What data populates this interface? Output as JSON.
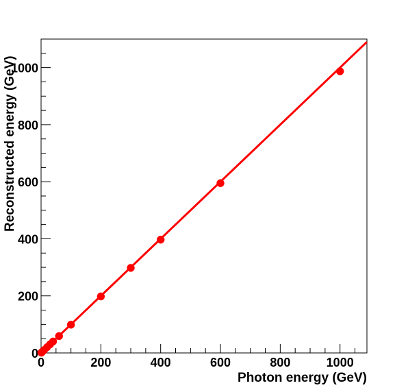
{
  "chart_data": {
    "type": "scatter",
    "title": "",
    "xlabel": "Photon energy (GeV)",
    "ylabel": "Reconstructed energy (GeV)",
    "xlim": [
      0,
      1090
    ],
    "ylim": [
      0,
      1100
    ],
    "x_ticks": [
      0,
      200,
      400,
      600,
      800,
      1000
    ],
    "y_ticks": [
      0,
      200,
      400,
      600,
      800,
      1000
    ],
    "grid": false,
    "series": [
      {
        "color": "#ff0000",
        "marker": "circle",
        "points": [
          {
            "x": 1,
            "y": 1
          },
          {
            "x": 2,
            "y": 2
          },
          {
            "x": 5,
            "y": 5
          },
          {
            "x": 10,
            "y": 10
          },
          {
            "x": 20,
            "y": 20
          },
          {
            "x": 30,
            "y": 30
          },
          {
            "x": 40,
            "y": 40
          },
          {
            "x": 60,
            "y": 59
          },
          {
            "x": 100,
            "y": 99
          },
          {
            "x": 200,
            "y": 198
          },
          {
            "x": 300,
            "y": 298
          },
          {
            "x": 400,
            "y": 397
          },
          {
            "x": 600,
            "y": 595
          },
          {
            "x": 1000,
            "y": 987
          }
        ]
      }
    ],
    "fit_line": {
      "color": "#ff0000",
      "x_start": 0,
      "x_end": 1090,
      "slope": 1.0,
      "intercept": 0
    }
  }
}
